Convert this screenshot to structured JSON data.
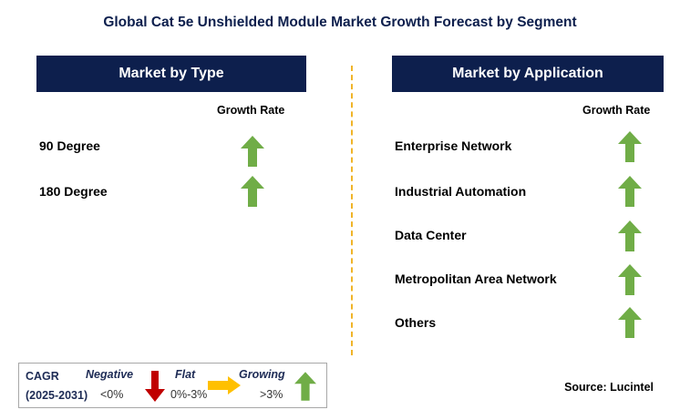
{
  "title": "Global Cat 5e Unshielded Module Market Growth Forecast by Segment",
  "left_panel": {
    "header": "Market by Type",
    "growth_label": "Growth Rate",
    "items": [
      {
        "label": "90 Degree",
        "trend": "growing"
      },
      {
        "label": "180 Degree",
        "trend": "growing"
      }
    ]
  },
  "right_panel": {
    "header": "Market by Application",
    "growth_label": "Growth Rate",
    "items": [
      {
        "label": "Enterprise Network",
        "trend": "growing"
      },
      {
        "label": "Industrial Automation",
        "trend": "growing"
      },
      {
        "label": "Data Center",
        "trend": "growing"
      },
      {
        "label": "Metropolitan Area Network",
        "trend": "growing"
      },
      {
        "label": "Others",
        "trend": "growing"
      }
    ]
  },
  "legend": {
    "cagr_label": "CAGR",
    "period": "(2025-2031)",
    "negative": {
      "label": "Negative",
      "range": "<0%",
      "color": "#c00000"
    },
    "flat": {
      "label": "Flat",
      "range": "0%-3%",
      "color": "#ffc000"
    },
    "growing": {
      "label": "Growing",
      "range": ">3%",
      "color": "#70ad47"
    }
  },
  "source": "Source: Lucintel",
  "colors": {
    "header_bg": "#0d1f4d",
    "divider": "#f0b429",
    "up_arrow": "#70ad47"
  }
}
